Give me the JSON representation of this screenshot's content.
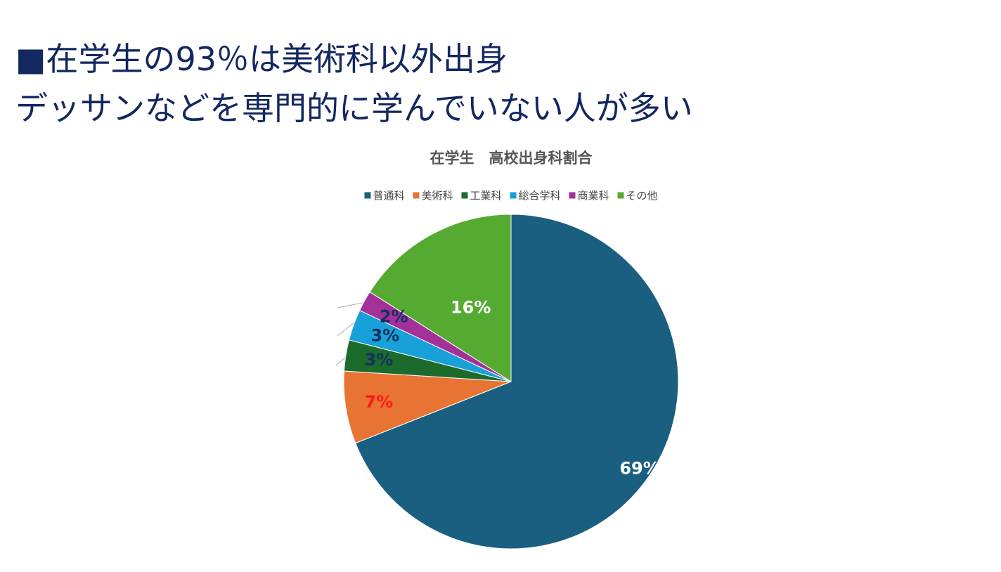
{
  "heading": {
    "line1": "■在学生の93％は美術科以外出身",
    "line2": "デッサンなどを専門的に学んでいない人が多い"
  },
  "chart_data": {
    "type": "pie",
    "title": "在学生　高校出身科割合",
    "categories": [
      "普通科",
      "美術科",
      "工業科",
      "総合学科",
      "商業科",
      "その他"
    ],
    "values": [
      69,
      7,
      3,
      3,
      2,
      16
    ],
    "value_labels": [
      "69%",
      "7%",
      "3%",
      "3%",
      "2%",
      "16%"
    ],
    "colors": [
      "#1a5f80",
      "#e87434",
      "#1d6b2c",
      "#18a0d8",
      "#a4309a",
      "#55aa32"
    ],
    "label_colors": [
      "#ffffff",
      "#ff1a1a",
      "#13305e",
      "#13305e",
      "#13305e",
      "#ffffff"
    ],
    "legend": "top"
  }
}
